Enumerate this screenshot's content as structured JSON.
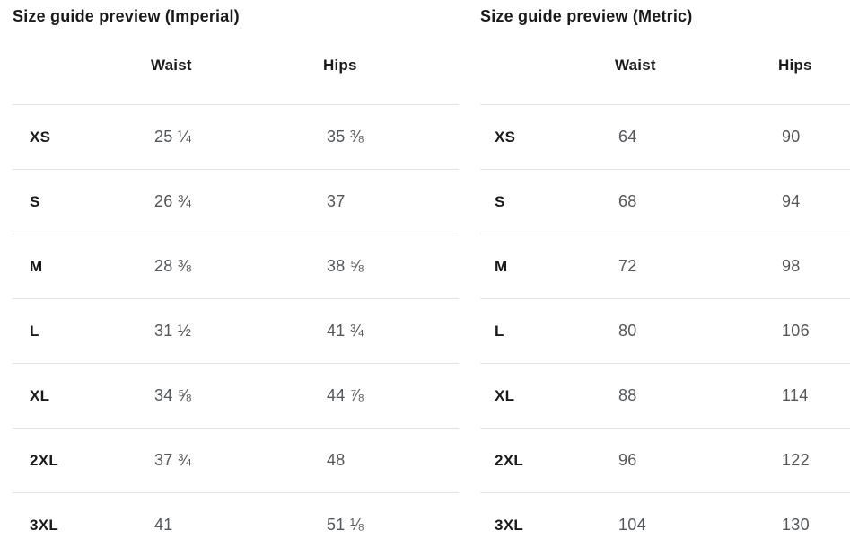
{
  "colors": {
    "heading": "#1a1a1a",
    "value": "#53575b",
    "divider": "#e2e3e5"
  },
  "tables": [
    {
      "title": "Size guide preview (Imperial)",
      "columns": {
        "waist": "Waist",
        "hips": "Hips"
      },
      "rows": [
        {
          "size": "XS",
          "waist": "25 ¼",
          "hips": "35 ⅜"
        },
        {
          "size": "S",
          "waist": "26 ¾",
          "hips": "37"
        },
        {
          "size": "M",
          "waist": "28 ⅜",
          "hips": "38 ⅝"
        },
        {
          "size": "L",
          "waist": "31 ½",
          "hips": "41 ¾"
        },
        {
          "size": "XL",
          "waist": "34 ⅝",
          "hips": "44 ⅞"
        },
        {
          "size": "2XL",
          "waist": "37 ¾",
          "hips": "48"
        },
        {
          "size": "3XL",
          "waist": "41",
          "hips": "51 ⅛"
        }
      ]
    },
    {
      "title": "Size guide preview (Metric)",
      "columns": {
        "waist": "Waist",
        "hips": "Hips"
      },
      "rows": [
        {
          "size": "XS",
          "waist": "64",
          "hips": "90"
        },
        {
          "size": "S",
          "waist": "68",
          "hips": "94"
        },
        {
          "size": "M",
          "waist": "72",
          "hips": "98"
        },
        {
          "size": "L",
          "waist": "80",
          "hips": "106"
        },
        {
          "size": "XL",
          "waist": "88",
          "hips": "114"
        },
        {
          "size": "2XL",
          "waist": "96",
          "hips": "122"
        },
        {
          "size": "3XL",
          "waist": "104",
          "hips": "130"
        }
      ]
    }
  ]
}
